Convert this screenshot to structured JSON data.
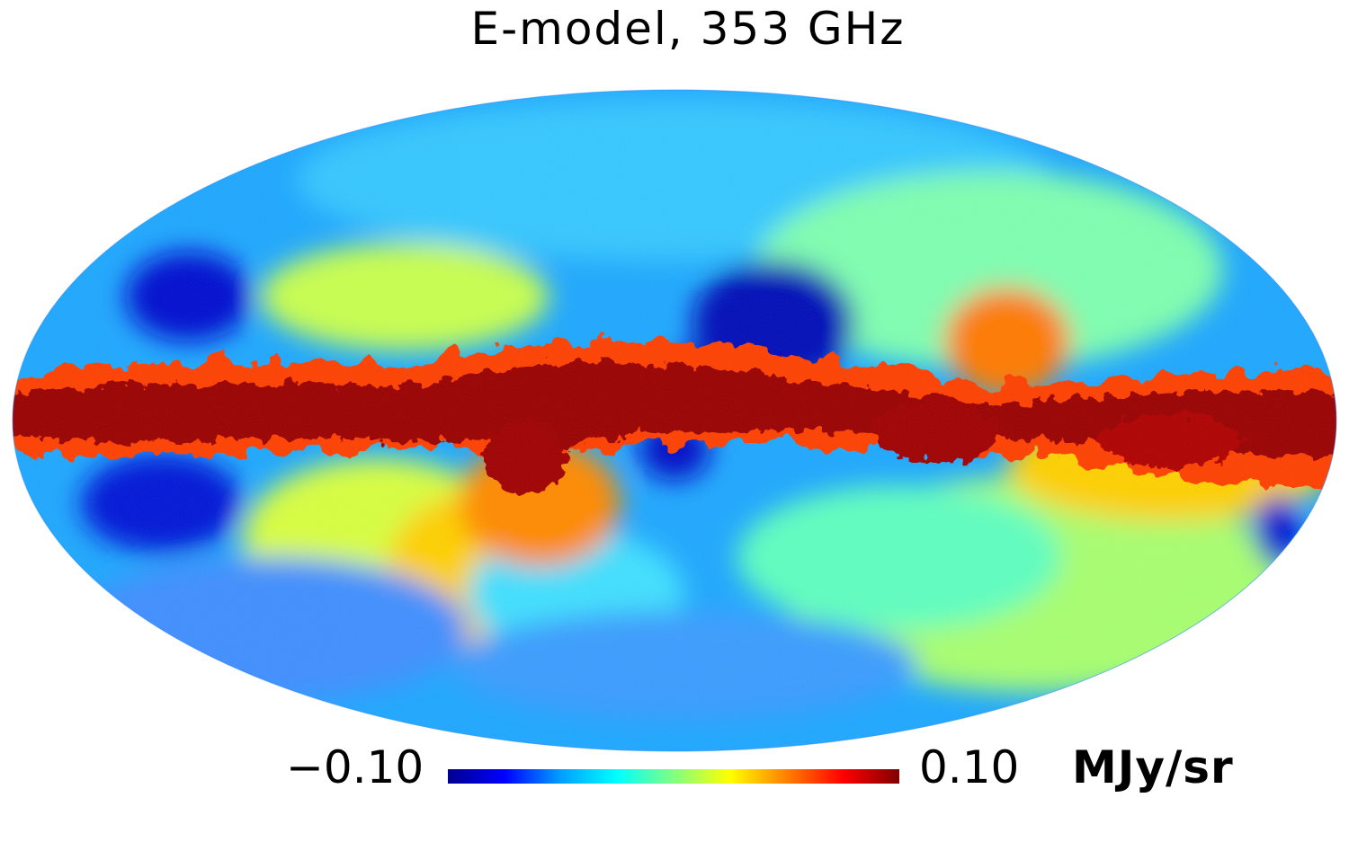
{
  "title": "E-model, 353 GHz",
  "colorbar": {
    "min_label": "−0.10",
    "max_label": "0.10",
    "unit": "MJy/sr",
    "min": -0.1,
    "max": 0.1,
    "colormap": "jet",
    "stops": [
      "#00008f",
      "#0000ff",
      "#00a0ff",
      "#00ffff",
      "#80ff80",
      "#ffff00",
      "#ff8000",
      "#ff0000",
      "#800000"
    ]
  },
  "map": {
    "projection": "mollweide",
    "background_color": "#ffffff",
    "band_color": "#9a0000"
  }
}
